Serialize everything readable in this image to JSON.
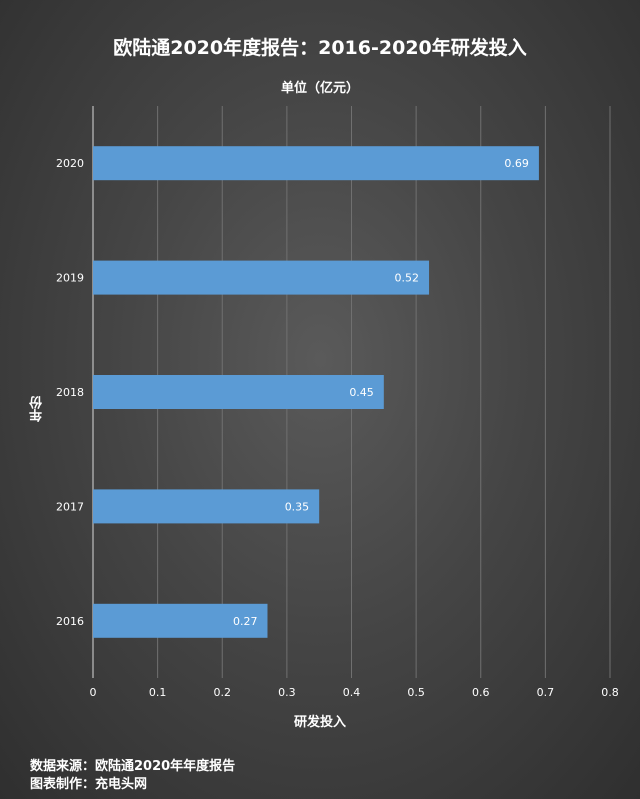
{
  "chart_data": {
    "type": "bar",
    "orientation": "horizontal",
    "title": "欧陆通2020年度报告：2016-2020年研发投入",
    "subtitle": "单位（亿元）",
    "xlabel": "研发投入",
    "ylabel": "年份",
    "categories": [
      "2020",
      "2019",
      "2018",
      "2017",
      "2016"
    ],
    "values": [
      0.69,
      0.52,
      0.45,
      0.35,
      0.27
    ],
    "data_labels": [
      "0.69",
      "0.52",
      "0.45",
      "0.35",
      "0.27"
    ],
    "xlim": [
      0,
      0.8
    ],
    "x_ticks": [
      "0",
      "0.1",
      "0.2",
      "0.3",
      "0.4",
      "0.5",
      "0.6",
      "0.7",
      "0.8"
    ],
    "grid": true,
    "bar_color": "#5b9bd5"
  },
  "footer": {
    "source": "数据来源：欧陆通2020年年度报告",
    "maker": "图表制作：充电头网"
  }
}
